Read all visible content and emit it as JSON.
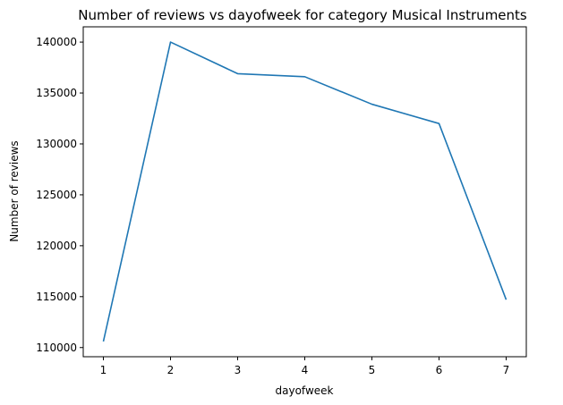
{
  "chart_data": {
    "type": "line",
    "title": "Number of reviews vs dayofweek for category Musical Instruments",
    "xlabel": "dayofweek",
    "ylabel": "Number of reviews",
    "x": [
      1,
      2,
      3,
      4,
      5,
      6,
      7
    ],
    "series": [
      {
        "values": [
          110600,
          140000,
          136900,
          136600,
          133900,
          132000,
          114700
        ]
      }
    ],
    "xlim": [
      0.7,
      7.3
    ],
    "ylim": [
      109100,
      141500
    ],
    "xticks": [
      1,
      2,
      3,
      4,
      5,
      6,
      7
    ],
    "yticks": [
      110000,
      115000,
      120000,
      125000,
      130000,
      135000,
      140000
    ],
    "grid": false,
    "legend": "none",
    "line_color": "#1f77b4"
  }
}
